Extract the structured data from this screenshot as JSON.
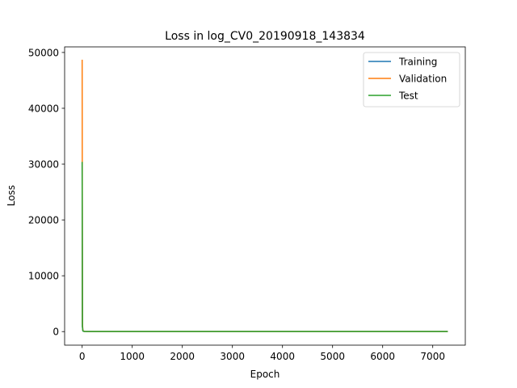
{
  "chart_data": {
    "type": "line",
    "title": "Loss in log_CV0_20190918_143834",
    "xlabel": "Epoch",
    "ylabel": "Loss",
    "xlim": [
      -350,
      7650
    ],
    "ylim": [
      -2430,
      51000
    ],
    "xticks": [
      0,
      1000,
      2000,
      3000,
      4000,
      5000,
      6000,
      7000
    ],
    "yticks": [
      0,
      10000,
      20000,
      30000,
      40000,
      50000
    ],
    "grid": false,
    "legend_position": "upper-right",
    "series": [
      {
        "name": "Training",
        "color": "#1f77b4",
        "x": [
          0,
          5,
          15,
          40,
          100,
          7300
        ],
        "y": [
          30300,
          900,
          100,
          30,
          10,
          5
        ]
      },
      {
        "name": "Validation",
        "color": "#ff7f0e",
        "x": [
          0,
          5,
          15,
          40,
          100,
          7300
        ],
        "y": [
          48700,
          1500,
          150,
          40,
          15,
          10
        ]
      },
      {
        "name": "Test",
        "color": "#2ca02c",
        "x": [
          0,
          5,
          15,
          40,
          100,
          7300
        ],
        "y": [
          30400,
          950,
          110,
          35,
          12,
          6
        ]
      }
    ]
  }
}
